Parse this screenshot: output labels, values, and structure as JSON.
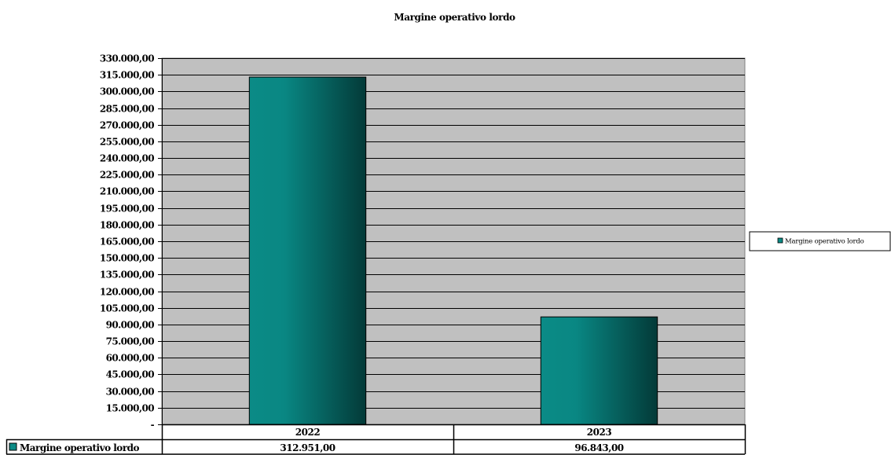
{
  "chart_data": {
    "type": "bar",
    "title": "Margine operativo lordo",
    "xlabel": "",
    "ylabel": "",
    "categories": [
      "2022",
      "2023"
    ],
    "series": [
      {
        "name": "Margine operativo lordo",
        "values": [
          312951,
          96843
        ],
        "value_labels": [
          "312.951,00",
          "96.843,00"
        ]
      }
    ],
    "ylim": [
      0,
      330000
    ],
    "ytick_step": 15000,
    "ytick_labels": [
      "-",
      "15.000,00",
      "30.000,00",
      "45.000,00",
      "60.000,00",
      "75.000,00",
      "90.000,00",
      "105.000,00",
      "120.000,00",
      "135.000,00",
      "150.000,00",
      "165.000,00",
      "180.000,00",
      "195.000,00",
      "210.000,00",
      "225.000,00",
      "240.000,00",
      "255.000,00",
      "270.000,00",
      "285.000,00",
      "300.000,00",
      "315.000,00",
      "330.000,00"
    ],
    "grid": true,
    "legend": "right",
    "data_table": true
  },
  "colors": {
    "plot_background": "#c0c0c0",
    "bar_light": "#0b8b86",
    "bar_dark": "#033a38",
    "gridline": "#000000"
  }
}
